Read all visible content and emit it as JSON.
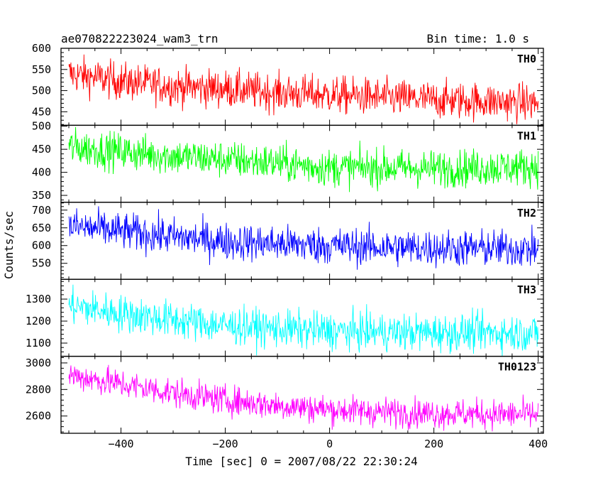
{
  "chart_data": {
    "type": "line",
    "title": "ae070822223024_wam3_trn",
    "subtitle": "Bin time: 1.0 s",
    "xlabel": "Time [sec] 0 = 2007/08/22 22:30:24",
    "ylabel": "Counts/sec",
    "xlim": [
      -515,
      410
    ],
    "x_ticks": [
      -400,
      -200,
      0,
      200,
      400
    ],
    "grid": false,
    "legend": "none",
    "panels": [
      {
        "name": "TH0",
        "color": "#ff0000",
        "ylim": [
          418,
          600
        ],
        "y_ticks": [
          450,
          500,
          550,
          600
        ],
        "trend": {
          "x": [
            -500,
            -400,
            -300,
            -200,
            -100,
            0,
            100,
            200,
            300,
            400
          ],
          "y": [
            540,
            522,
            510,
            504,
            495,
            490,
            484,
            478,
            475,
            470
          ]
        },
        "noise": 22
      },
      {
        "name": "TH1",
        "color": "#00ff00",
        "ylim": [
          335,
          502
        ],
        "y_ticks": [
          350,
          400,
          450,
          500
        ],
        "trend": {
          "x": [
            -500,
            -400,
            -300,
            -200,
            -100,
            0,
            100,
            200,
            300,
            400
          ],
          "y": [
            455,
            445,
            435,
            428,
            420,
            410,
            410,
            408,
            410,
            412
          ]
        },
        "noise": 20
      },
      {
        "name": "TH2",
        "color": "#0000ff",
        "ylim": [
          505,
          722
        ],
        "y_ticks": [
          550,
          600,
          650,
          700
        ],
        "trend": {
          "x": [
            -500,
            -400,
            -300,
            -200,
            -100,
            0,
            100,
            200,
            300,
            400
          ],
          "y": [
            655,
            640,
            625,
            612,
            605,
            600,
            595,
            593,
            592,
            590
          ]
        },
        "noise": 26
      },
      {
        "name": "TH3",
        "color": "#00ffff",
        "ylim": [
          1040,
          1390
        ],
        "y_ticks": [
          1100,
          1200,
          1300
        ],
        "trend": {
          "x": [
            -500,
            -400,
            -300,
            -200,
            -100,
            0,
            100,
            200,
            300,
            400
          ],
          "y": [
            1270,
            1235,
            1205,
            1180,
            1165,
            1155,
            1150,
            1148,
            1148,
            1145
          ]
        },
        "noise": 42
      },
      {
        "name": "TH0123",
        "color": "#ff00ff",
        "ylim": [
          2470,
          3050
        ],
        "y_ticks": [
          2600,
          2800,
          3000
        ],
        "trend": {
          "x": [
            -500,
            -400,
            -300,
            -200,
            -100,
            0,
            100,
            200,
            300,
            400
          ],
          "y": [
            2910,
            2840,
            2775,
            2720,
            2680,
            2650,
            2630,
            2620,
            2615,
            2610
          ]
        },
        "noise": 55
      }
    ]
  }
}
